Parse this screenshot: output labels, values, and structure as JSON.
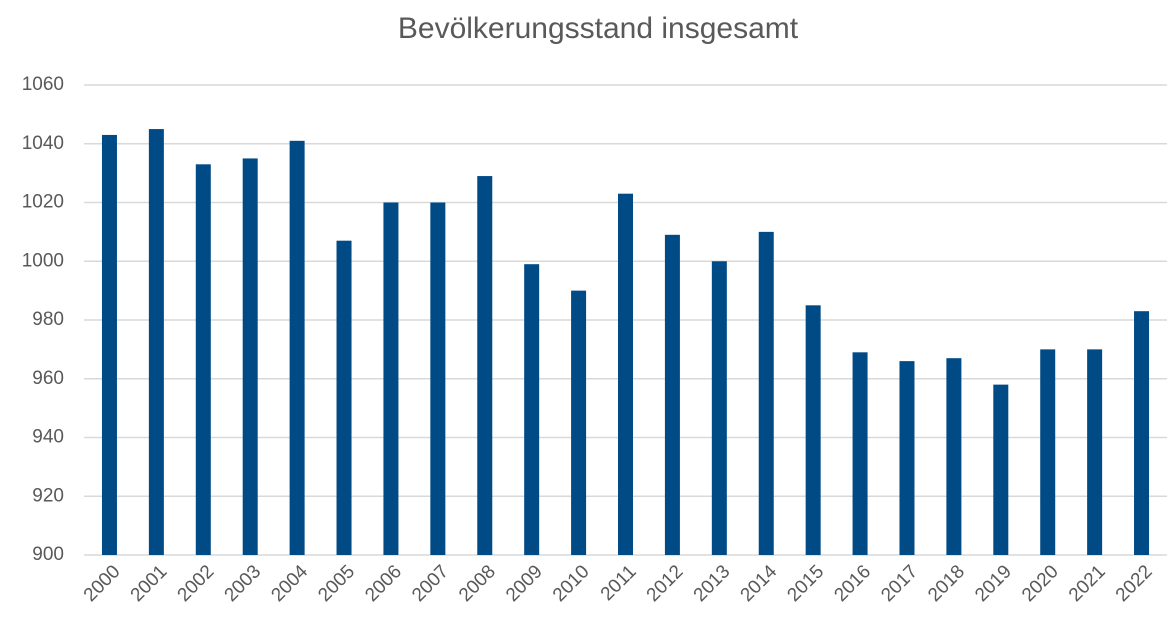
{
  "chart_data": {
    "type": "bar",
    "title": "Bevölkerungsstand insgesamt",
    "categories": [
      "2000",
      "2001",
      "2002",
      "2003",
      "2004",
      "2005",
      "2006",
      "2007",
      "2008",
      "2009",
      "2010",
      "2011",
      "2012",
      "2013",
      "2014",
      "2015",
      "2016",
      "2017",
      "2018",
      "2019",
      "2020",
      "2021",
      "2022"
    ],
    "values": [
      1043,
      1045,
      1033,
      1035,
      1041,
      1007,
      1020,
      1020,
      1029,
      999,
      990,
      1023,
      1009,
      1000,
      1010,
      985,
      969,
      966,
      967,
      958,
      970,
      970,
      983
    ],
    "color": "#004a86",
    "ylim": [
      900,
      1060
    ],
    "yticks": [
      900,
      920,
      940,
      960,
      980,
      1000,
      1020,
      1040,
      1060
    ],
    "grid": true
  }
}
